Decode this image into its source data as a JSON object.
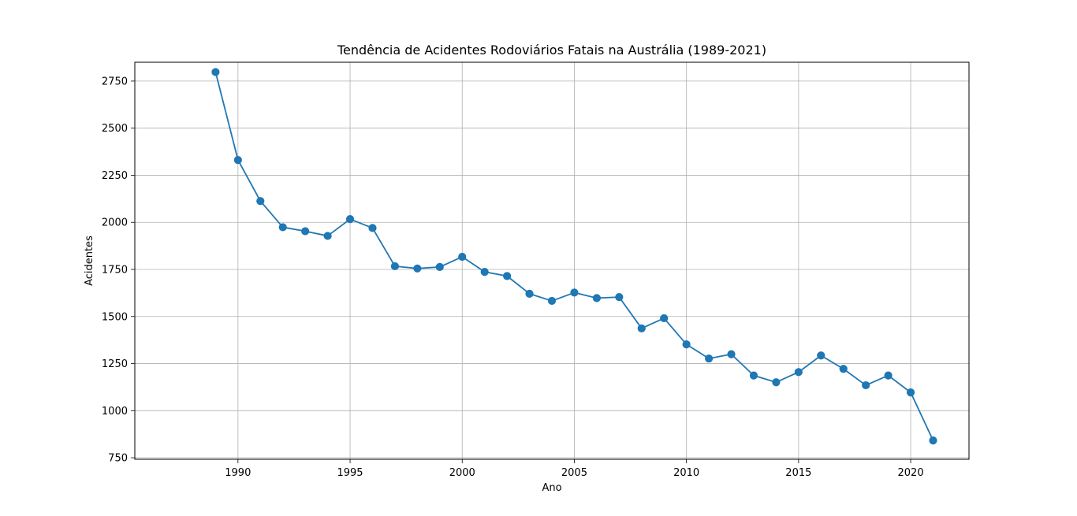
{
  "chart_data": {
    "type": "line",
    "title": "Tendência de Acidentes Rodoviários Fatais na Austrália (1989-2021)",
    "xlabel": "Ano",
    "ylabel": "Acidentes",
    "xlim": [
      1985.4,
      2022.6
    ],
    "ylim": [
      742,
      2850
    ],
    "grid": true,
    "series_color": "#1f77b4",
    "x_ticks": [
      1990,
      1995,
      2000,
      2005,
      2010,
      2015,
      2020
    ],
    "y_ticks": [
      750,
      1000,
      1250,
      1500,
      1750,
      2000,
      2250,
      2500,
      2750
    ],
    "x": [
      1989,
      1990,
      1991,
      1992,
      1993,
      1994,
      1995,
      1996,
      1997,
      1998,
      1999,
      2000,
      2001,
      2002,
      2003,
      2004,
      2005,
      2006,
      2007,
      2008,
      2009,
      2010,
      2011,
      2012,
      2013,
      2014,
      2015,
      2016,
      2017,
      2018,
      2019,
      2020,
      2021
    ],
    "series": [
      {
        "values": [
          2798,
          2331,
          2113,
          1974,
          1953,
          1928,
          2017,
          1970,
          1767,
          1755,
          1763,
          1817,
          1737,
          1715,
          1621,
          1583,
          1627,
          1598,
          1603,
          1437,
          1491,
          1352,
          1277,
          1300,
          1187,
          1151,
          1205,
          1293,
          1222,
          1135,
          1187,
          1097,
          842
        ]
      }
    ]
  }
}
